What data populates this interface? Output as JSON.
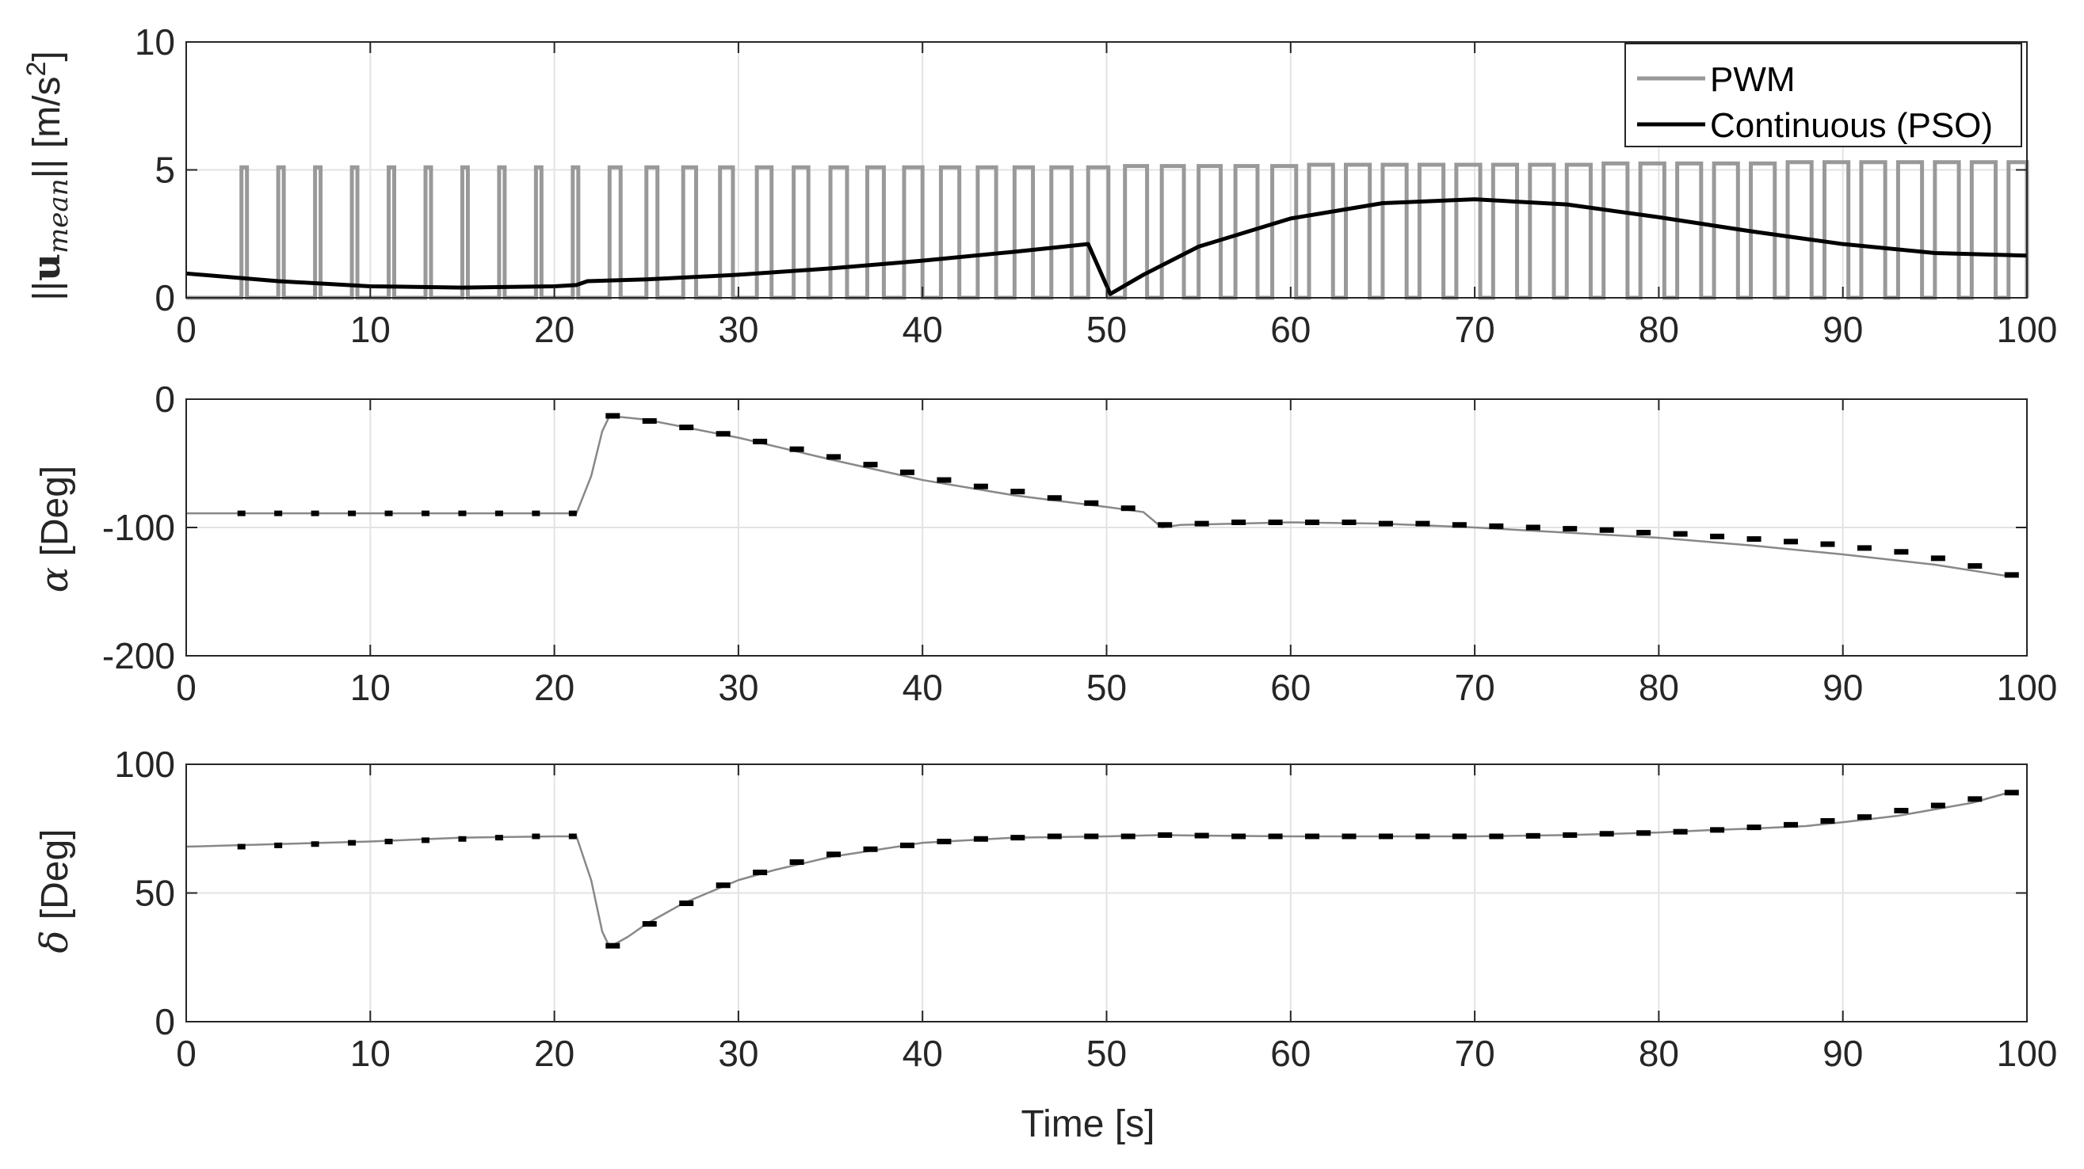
{
  "chart_data": [
    {
      "type": "line",
      "panel": "top",
      "ylabel": "||u_mean|| [m/s^2]",
      "ylabel_parts": {
        "open": "||",
        "bold": "u",
        "sub": "mean",
        "close": "|| [m/s",
        "sup": "2",
        "end": "]"
      },
      "xlabel": "",
      "xlim": [
        0,
        100
      ],
      "ylim": [
        0,
        10
      ],
      "xticks": [
        "0",
        "10",
        "20",
        "30",
        "40",
        "50",
        "60",
        "70",
        "80",
        "90",
        "100"
      ],
      "yticks": [
        "0",
        "5",
        "10"
      ],
      "grid": true,
      "legend": {
        "position": "top-right",
        "entries": [
          "PWM",
          "Continuous (PSO)"
        ]
      },
      "series": [
        {
          "name": "PWM",
          "color": "#999999",
          "style": "pulse-train",
          "pulse_starts": [
            3,
            5,
            7,
            9,
            11,
            13,
            15,
            17,
            19,
            21,
            23,
            25,
            27,
            29,
            31,
            33,
            35,
            37,
            39,
            41,
            43,
            45,
            47,
            49,
            51,
            53,
            55,
            57,
            59,
            61,
            63,
            65,
            67,
            69,
            71,
            73,
            75,
            77,
            79,
            81,
            83,
            85,
            87,
            89,
            91,
            93,
            95,
            97,
            99
          ],
          "pulse_widths": [
            0.3,
            0.3,
            0.3,
            0.3,
            0.3,
            0.3,
            0.3,
            0.3,
            0.3,
            0.3,
            0.6,
            0.6,
            0.7,
            0.7,
            0.8,
            0.8,
            0.9,
            0.9,
            1.0,
            1.0,
            1.0,
            1.0,
            1.1,
            1.1,
            1.2,
            1.2,
            1.2,
            1.2,
            1.3,
            1.3,
            1.3,
            1.3,
            1.3,
            1.3,
            1.3,
            1.3,
            1.3,
            1.3,
            1.3,
            1.3,
            1.3,
            1.3,
            1.3,
            1.3,
            1.3,
            1.3,
            1.3,
            1.3,
            1.0
          ],
          "pulse_amplitudes": [
            5.1,
            5.1,
            5.1,
            5.1,
            5.1,
            5.1,
            5.1,
            5.1,
            5.1,
            5.1,
            5.1,
            5.1,
            5.1,
            5.1,
            5.1,
            5.1,
            5.1,
            5.1,
            5.1,
            5.1,
            5.1,
            5.1,
            5.1,
            5.1,
            5.15,
            5.15,
            5.15,
            5.15,
            5.15,
            5.2,
            5.2,
            5.2,
            5.2,
            5.2,
            5.2,
            5.2,
            5.2,
            5.25,
            5.25,
            5.25,
            5.25,
            5.25,
            5.3,
            5.3,
            5.3,
            5.3,
            5.3,
            5.3,
            5.3
          ]
        },
        {
          "name": "Continuous (PSO)",
          "color": "#000000",
          "x": [
            0,
            5,
            10,
            15,
            20,
            21.2,
            21.8,
            25,
            30,
            35,
            40,
            45,
            49,
            50.2,
            52,
            55,
            60,
            65,
            70,
            75,
            80,
            85,
            90,
            95,
            100
          ],
          "y": [
            0.95,
            0.65,
            0.45,
            0.4,
            0.45,
            0.5,
            0.65,
            0.72,
            0.9,
            1.15,
            1.45,
            1.8,
            2.1,
            0.15,
            0.9,
            2.0,
            3.1,
            3.7,
            3.85,
            3.65,
            3.15,
            2.6,
            2.1,
            1.75,
            1.65
          ]
        }
      ]
    },
    {
      "type": "line",
      "panel": "middle",
      "ylabel_symbol": "α",
      "ylabel_text": " [Deg]",
      "xlim": [
        0,
        100
      ],
      "ylim": [
        -200,
        0
      ],
      "xticks": [
        "0",
        "10",
        "20",
        "30",
        "40",
        "50",
        "60",
        "70",
        "80",
        "90",
        "100"
      ],
      "yticks": [
        "-200",
        "-100",
        "0"
      ],
      "grid": true,
      "series": [
        {
          "name": "alpha",
          "color": "#888888",
          "x": [
            0,
            5,
            10,
            15,
            20,
            21.2,
            22,
            22.6,
            23,
            25,
            30,
            35,
            40,
            45,
            50,
            52,
            53,
            54,
            60,
            65,
            70,
            75,
            80,
            85,
            90,
            95,
            99
          ],
          "y": [
            -89,
            -89,
            -89,
            -89,
            -89,
            -89,
            -60,
            -25,
            -13,
            -16,
            -30,
            -47,
            -63,
            -75,
            -84,
            -88,
            -100,
            -98,
            -96,
            -97,
            -100,
            -104,
            -108,
            -114,
            -121,
            -129,
            -138
          ]
        },
        {
          "name": "alpha-thrust-markers",
          "color": "#000000",
          "x": [
            3,
            5,
            7,
            9,
            11,
            13,
            15,
            17,
            19,
            21,
            23,
            25,
            27,
            29,
            31,
            33,
            35,
            37,
            39,
            41,
            43,
            45,
            47,
            49,
            51,
            53,
            55,
            57,
            59,
            61,
            63,
            65,
            67,
            69,
            71,
            73,
            75,
            77,
            79,
            81,
            83,
            85,
            87,
            89,
            91,
            93,
            95,
            97,
            99
          ],
          "y": [
            -89,
            -89,
            -89,
            -89,
            -89,
            -89,
            -89,
            -89,
            -89,
            -89,
            -13,
            -17,
            -22,
            -27,
            -33,
            -39,
            -45,
            -51,
            -57,
            -63,
            -68,
            -72,
            -77,
            -81,
            -85,
            -98,
            -97,
            -96,
            -96,
            -96,
            -96,
            -97,
            -97,
            -98,
            -99,
            -100,
            -101,
            -102,
            -104,
            -105,
            -107,
            -109,
            -111,
            -113,
            -116,
            -119,
            -124,
            -130,
            -137
          ]
        }
      ]
    },
    {
      "type": "line",
      "panel": "bottom",
      "ylabel_symbol": "δ",
      "ylabel_text": " [Deg]",
      "xlabel": "Time [s]",
      "xlim": [
        0,
        100
      ],
      "ylim": [
        0,
        100
      ],
      "xticks": [
        "0",
        "10",
        "20",
        "30",
        "40",
        "50",
        "60",
        "70",
        "80",
        "90",
        "100"
      ],
      "yticks": [
        "0",
        "50",
        "100"
      ],
      "grid": true,
      "series": [
        {
          "name": "delta",
          "color": "#888888",
          "x": [
            0,
            5,
            10,
            15,
            20,
            21.2,
            22,
            22.6,
            23,
            24,
            25,
            26,
            27,
            28,
            29,
            30,
            32,
            35,
            40,
            45,
            50,
            53,
            55,
            60,
            65,
            70,
            75,
            80,
            83,
            85,
            88,
            90,
            93,
            95,
            97,
            99
          ],
          "y": [
            68,
            69,
            70,
            71.5,
            72,
            72,
            55,
            35,
            29,
            33,
            38,
            42,
            46,
            49,
            52,
            55,
            59,
            64,
            69.5,
            71.5,
            72,
            72.5,
            72.3,
            72,
            72,
            72,
            72.5,
            73.5,
            74.5,
            75,
            76,
            77.5,
            80,
            82.5,
            85,
            89
          ]
        },
        {
          "name": "delta-thrust-markers",
          "color": "#000000",
          "x": [
            3,
            5,
            7,
            9,
            11,
            13,
            15,
            17,
            19,
            21,
            23,
            25,
            27,
            29,
            31,
            33,
            35,
            37,
            39,
            41,
            43,
            45,
            47,
            49,
            51,
            53,
            55,
            57,
            59,
            61,
            63,
            65,
            67,
            69,
            71,
            73,
            75,
            77,
            79,
            81,
            83,
            85,
            87,
            89,
            91,
            93,
            95,
            97,
            99
          ],
          "y": [
            68,
            68.5,
            69,
            69.5,
            70,
            70.5,
            71,
            71.5,
            72,
            72,
            29.5,
            38,
            46,
            53,
            58,
            62,
            65,
            67,
            68.5,
            70,
            71,
            71.5,
            72,
            72,
            72,
            72.5,
            72.3,
            72,
            72,
            72,
            72,
            72,
            72,
            72,
            72,
            72.2,
            72.5,
            73,
            73.3,
            73.8,
            74.5,
            75.5,
            76.5,
            78,
            79.5,
            82,
            84,
            86.5,
            89
          ]
        }
      ]
    }
  ]
}
